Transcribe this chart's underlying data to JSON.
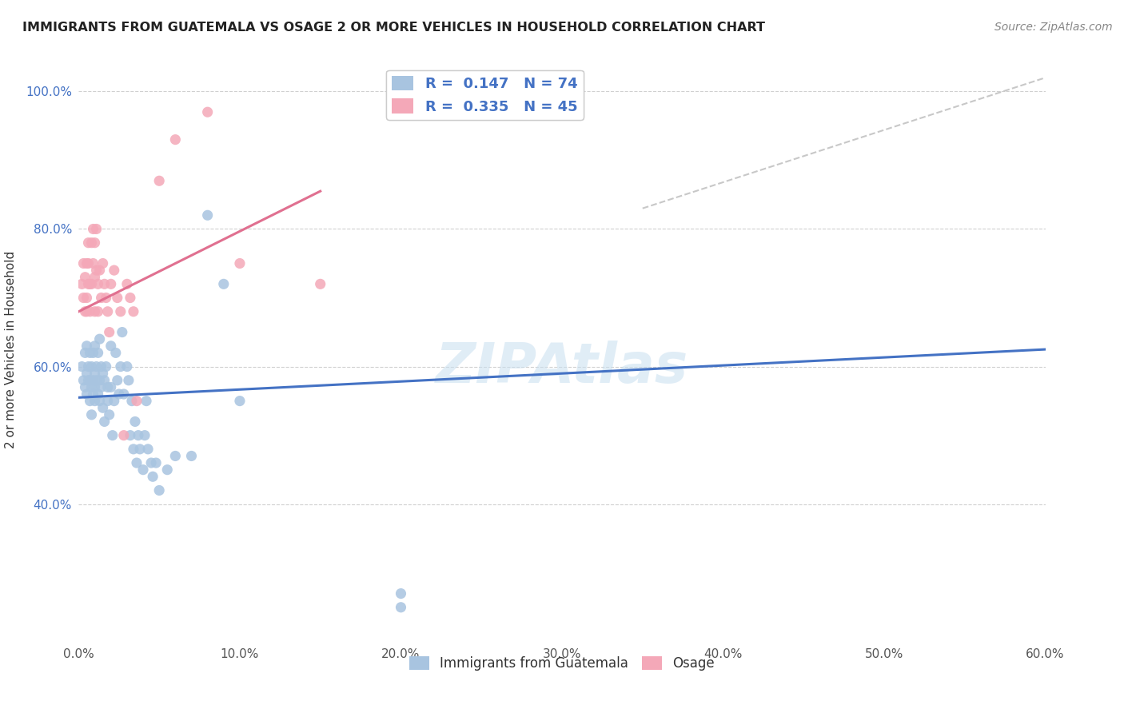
{
  "title": "IMMIGRANTS FROM GUATEMALA VS OSAGE 2 OR MORE VEHICLES IN HOUSEHOLD CORRELATION CHART",
  "source": "Source: ZipAtlas.com",
  "ylabel_text": "2 or more Vehicles in Household",
  "xlim": [
    0.0,
    0.6
  ],
  "ylim": [
    0.2,
    1.05
  ],
  "xtick_labels": [
    "0.0%",
    "10.0%",
    "20.0%",
    "30.0%",
    "40.0%",
    "50.0%",
    "60.0%"
  ],
  "xtick_values": [
    0.0,
    0.1,
    0.2,
    0.3,
    0.4,
    0.5,
    0.6
  ],
  "ytick_labels": [
    "40.0%",
    "60.0%",
    "80.0%",
    "100.0%"
  ],
  "ytick_values": [
    0.4,
    0.6,
    0.8,
    1.0
  ],
  "blue_color": "#a8c4e0",
  "pink_color": "#f4a8b8",
  "blue_line_color": "#4472c4",
  "pink_line_color": "#e07090",
  "dashed_line_color": "#c8c8c8",
  "legend_R1": "0.147",
  "legend_N1": "74",
  "legend_R2": "0.335",
  "legend_N2": "45",
  "legend_label1": "Immigrants from Guatemala",
  "legend_label2": "Osage",
  "watermark": "ZIPAtlas",
  "blue_scatter_x": [
    0.002,
    0.003,
    0.004,
    0.004,
    0.005,
    0.005,
    0.005,
    0.006,
    0.006,
    0.007,
    0.007,
    0.007,
    0.008,
    0.008,
    0.008,
    0.009,
    0.009,
    0.009,
    0.01,
    0.01,
    0.01,
    0.01,
    0.011,
    0.011,
    0.012,
    0.012,
    0.013,
    0.013,
    0.013,
    0.014,
    0.014,
    0.015,
    0.015,
    0.016,
    0.016,
    0.017,
    0.018,
    0.018,
    0.019,
    0.02,
    0.02,
    0.021,
    0.022,
    0.023,
    0.024,
    0.025,
    0.026,
    0.027,
    0.028,
    0.03,
    0.031,
    0.032,
    0.033,
    0.034,
    0.035,
    0.036,
    0.037,
    0.038,
    0.04,
    0.041,
    0.042,
    0.043,
    0.045,
    0.046,
    0.048,
    0.05,
    0.055,
    0.06,
    0.07,
    0.08,
    0.09,
    0.1,
    0.2,
    0.2
  ],
  "blue_scatter_y": [
    0.6,
    0.58,
    0.62,
    0.57,
    0.59,
    0.63,
    0.56,
    0.6,
    0.58,
    0.62,
    0.58,
    0.55,
    0.57,
    0.6,
    0.53,
    0.58,
    0.62,
    0.56,
    0.55,
    0.59,
    0.63,
    0.57,
    0.58,
    0.6,
    0.56,
    0.62,
    0.55,
    0.58,
    0.64,
    0.6,
    0.57,
    0.54,
    0.59,
    0.52,
    0.58,
    0.6,
    0.55,
    0.57,
    0.53,
    0.57,
    0.63,
    0.5,
    0.55,
    0.62,
    0.58,
    0.56,
    0.6,
    0.65,
    0.56,
    0.6,
    0.58,
    0.5,
    0.55,
    0.48,
    0.52,
    0.46,
    0.5,
    0.48,
    0.45,
    0.5,
    0.55,
    0.48,
    0.46,
    0.44,
    0.46,
    0.42,
    0.45,
    0.47,
    0.47,
    0.82,
    0.72,
    0.55,
    0.25,
    0.27
  ],
  "pink_scatter_x": [
    0.002,
    0.003,
    0.003,
    0.004,
    0.004,
    0.005,
    0.005,
    0.005,
    0.006,
    0.006,
    0.006,
    0.007,
    0.007,
    0.008,
    0.008,
    0.009,
    0.009,
    0.01,
    0.01,
    0.01,
    0.011,
    0.011,
    0.012,
    0.012,
    0.013,
    0.014,
    0.015,
    0.016,
    0.017,
    0.018,
    0.019,
    0.02,
    0.022,
    0.024,
    0.026,
    0.028,
    0.03,
    0.032,
    0.034,
    0.036,
    0.05,
    0.06,
    0.08,
    0.1,
    0.15
  ],
  "pink_scatter_y": [
    0.72,
    0.7,
    0.75,
    0.68,
    0.73,
    0.7,
    0.75,
    0.68,
    0.72,
    0.78,
    0.75,
    0.68,
    0.72,
    0.78,
    0.72,
    0.8,
    0.75,
    0.68,
    0.73,
    0.78,
    0.8,
    0.74,
    0.72,
    0.68,
    0.74,
    0.7,
    0.75,
    0.72,
    0.7,
    0.68,
    0.65,
    0.72,
    0.74,
    0.7,
    0.68,
    0.5,
    0.72,
    0.7,
    0.68,
    0.55,
    0.87,
    0.93,
    0.97,
    0.75,
    0.72
  ],
  "blue_line_x0": 0.0,
  "blue_line_y0": 0.555,
  "blue_line_x1": 0.6,
  "blue_line_y1": 0.625,
  "pink_line_x0": 0.0,
  "pink_line_y0": 0.68,
  "pink_line_x1": 0.15,
  "pink_line_y1": 0.855,
  "dash_line_x0": 0.35,
  "dash_line_y0": 0.83,
  "dash_line_x1": 0.6,
  "dash_line_y1": 1.02
}
